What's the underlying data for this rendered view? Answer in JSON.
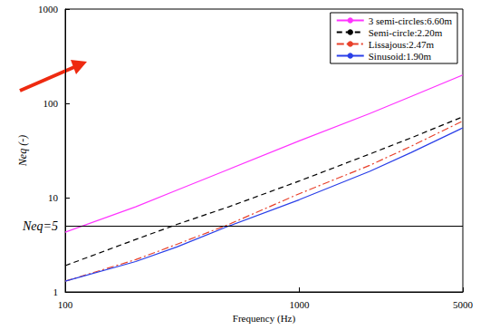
{
  "chart_data": {
    "type": "line",
    "xlabel": "Frequency (Hz)",
    "ylabel": "Neq (-)",
    "x": [
      100,
      200,
      300,
      500,
      1000,
      2000,
      3000,
      5000
    ],
    "series": [
      {
        "name": "3 semi-circles:6.60m",
        "color": "#ff33ff",
        "line_style": "solid",
        "values": [
          4.3,
          8,
          12,
          20,
          40,
          78,
          118,
          200
        ]
      },
      {
        "name": "Semi-circle:2.20m",
        "color": "#000000",
        "line_style": "dashed",
        "values": [
          1.9,
          3.6,
          5.2,
          8,
          15,
          29,
          43,
          72
        ]
      },
      {
        "name": "Lissajous:2.47m",
        "color": "#e8402a",
        "line_style": "dashdot",
        "values": [
          1.3,
          2.2,
          3.2,
          5.2,
          11,
          22,
          35,
          65
        ]
      },
      {
        "name": "Sinusoid:1.90m",
        "color": "#2a3fe8",
        "line_style": "solid",
        "values": [
          1.3,
          2.1,
          3.0,
          5.0,
          9.5,
          19,
          30,
          55
        ]
      }
    ],
    "xlim": [
      100,
      5000
    ],
    "ylim": [
      1,
      1000
    ],
    "xticks": [
      100,
      1000,
      5000
    ],
    "yticks": [
      1,
      10,
      100,
      1000
    ],
    "log": true,
    "grid": false,
    "legend": "upper right",
    "marker": "none",
    "annotations": [
      {
        "text": "Neq=5",
        "y": 5
      }
    ]
  }
}
